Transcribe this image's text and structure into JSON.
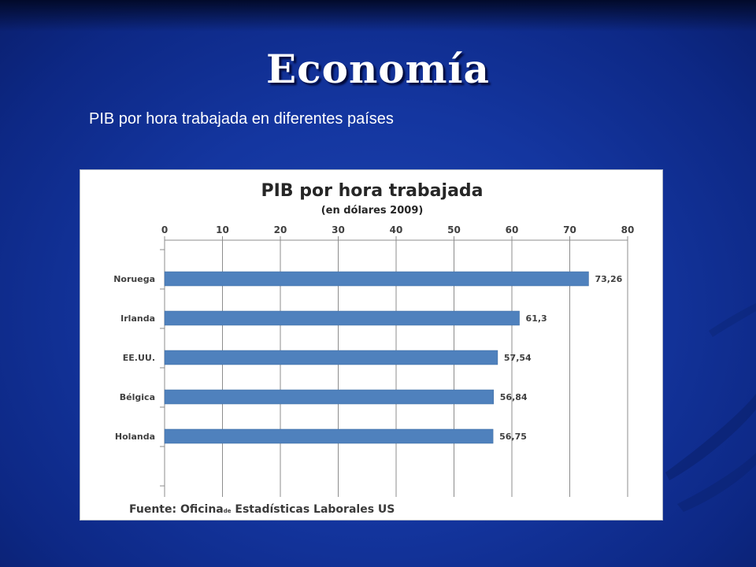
{
  "slide": {
    "title": "Economía",
    "subtitle": "PIB por hora trabajada en diferentes países"
  },
  "colors": {
    "background": "#1436a0",
    "bar": "#4f81bd"
  },
  "chart_data": {
    "type": "bar",
    "orientation": "horizontal",
    "title": "PIB por hora trabajada",
    "subtitle": "(en dólares 2009)",
    "categories": [
      "Noruega",
      "Irlanda",
      "EE.UU.",
      "Bélgica",
      "Holanda"
    ],
    "values": [
      73.26,
      61.3,
      57.54,
      56.84,
      56.75
    ],
    "value_labels": [
      "73,26",
      "61,3",
      "57,54",
      "56,84",
      "56,75"
    ],
    "xlim": [
      0,
      80
    ],
    "xticks": [
      "0",
      "10",
      "20",
      "30",
      "40",
      "50",
      "60",
      "70",
      "80"
    ],
    "x_axis_position": "top",
    "grid": true,
    "legend": "none",
    "source": {
      "label": "Fuente:",
      "text_a": "Oficina",
      "text_small": "de",
      "text_b": "Estadísticas Laborales US"
    }
  }
}
